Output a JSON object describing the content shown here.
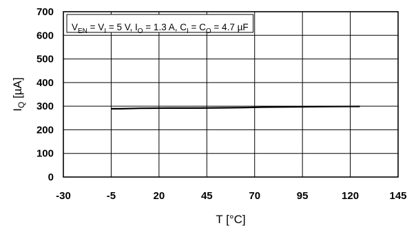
{
  "chart_data": {
    "type": "line",
    "xlabel": "T [°C]",
    "ylabel": "I",
    "ylabel_sub": "Q",
    "ylabel_unit": " [µA]",
    "xlim": [
      -30,
      145
    ],
    "ylim": [
      0,
      700
    ],
    "x_ticks": [
      -30,
      -5,
      20,
      45,
      70,
      95,
      120,
      145
    ],
    "y_ticks": [
      0,
      100,
      200,
      300,
      400,
      500,
      600,
      700
    ],
    "grid": true,
    "annotation_parts": [
      {
        "text": "V",
        "sub": false
      },
      {
        "text": "EN",
        "sub": true
      },
      {
        "text": " = V",
        "sub": false
      },
      {
        "text": "I",
        "sub": true
      },
      {
        "text": " = 5 V, I",
        "sub": false
      },
      {
        "text": "O",
        "sub": true
      },
      {
        "text": " = 1.3 A, C",
        "sub": false
      },
      {
        "text": "I",
        "sub": true
      },
      {
        "text": " = C",
        "sub": false
      },
      {
        "text": "O",
        "sub": true
      },
      {
        "text": " = 4.7 µF",
        "sub": false
      }
    ],
    "series": [
      {
        "color": "#000000",
        "x": [
          -5,
          0,
          10,
          25,
          40,
          55,
          65,
          75,
          90,
          105,
          125
        ],
        "y": [
          289,
          289,
          291,
          292,
          292,
          293,
          294,
          296,
          297,
          298,
          299
        ]
      }
    ]
  }
}
